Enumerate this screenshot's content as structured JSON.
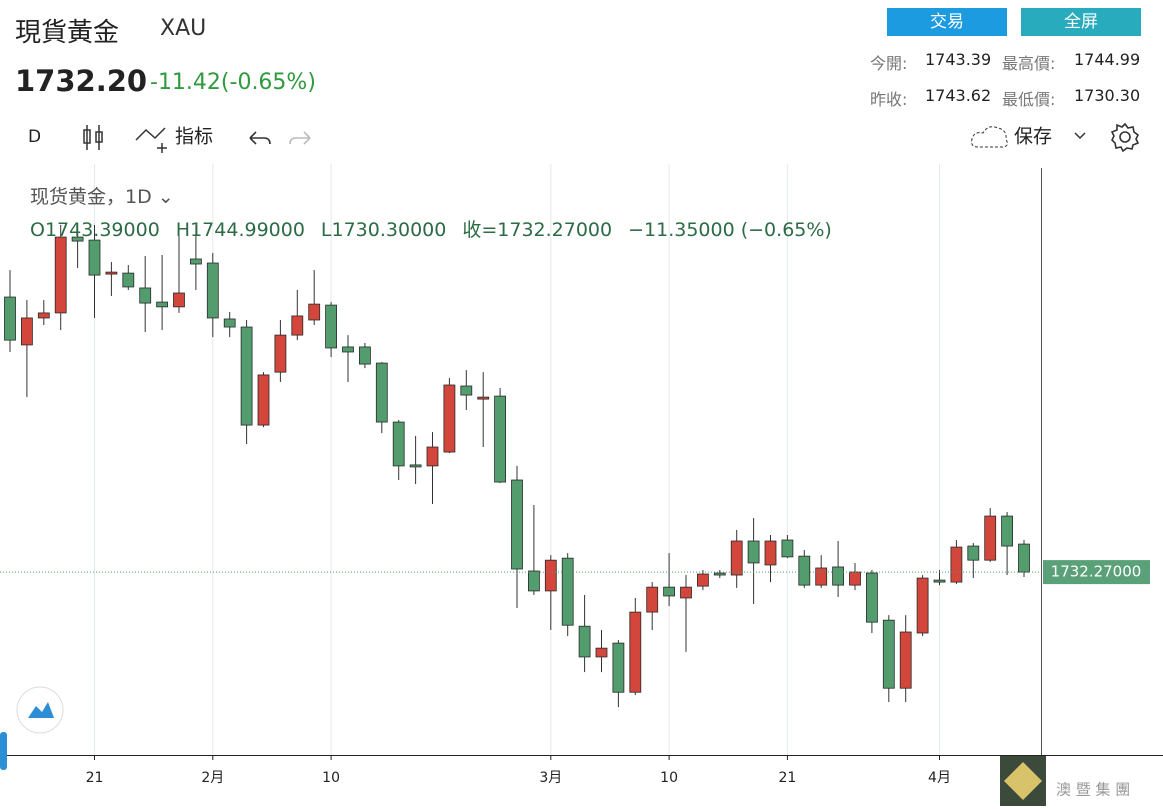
{
  "header": {
    "title": "現貨黃金",
    "symbol": "XAU",
    "price": "1732.20",
    "change": "-11.42(-0.65%)"
  },
  "buttons": [
    "交易",
    "全屏"
  ],
  "quote": [
    [
      "今開:",
      "1743.39",
      "最高價:",
      "1744.99"
    ],
    [
      "昨收:",
      "1743.62",
      "最低價:",
      "1730.30"
    ]
  ],
  "toolbar": {
    "interval": "D",
    "indicators": "指标",
    "save": "保存"
  },
  "watermark": "澳 暨 集 團",
  "chart_data": {
    "type": "candlestick",
    "legend_title": "现货黄金，1D",
    "ohlc_labels": [
      "O1743.39000",
      "H1744.99000",
      "L1730.30000",
      "收=1732.27000",
      "−11.35000 (−0.65%)"
    ],
    "last_price_label": "1732.27000",
    "categories": [
      null,
      null,
      null,
      null,
      null,
      "21",
      null,
      null,
      null,
      null,
      null,
      null,
      "2月",
      null,
      null,
      null,
      null,
      null,
      null,
      "10",
      null,
      null,
      null,
      null,
      null,
      null,
      null,
      null,
      null,
      null,
      null,
      null,
      "3月",
      null,
      null,
      null,
      null,
      null,
      null,
      "10",
      null,
      null,
      null,
      null,
      null,
      null,
      "21",
      null,
      null,
      null,
      null,
      null,
      null,
      null,
      null,
      "4月",
      null,
      null,
      null,
      null,
      null
    ],
    "open": [
      1841.4,
      1822.4,
      1833.1,
      1835.1,
      1865.2,
      1864.0,
      1850.5,
      1850.9,
      1845.0,
      1839.4,
      1837.5,
      1856.5,
      1854.9,
      1832.7,
      1829.5,
      1790.6,
      1811.6,
      1826.3,
      1832.3,
      1838.2,
      1821.6,
      1821.6,
      1815.2,
      1791.8,
      1774.8,
      1774.4,
      1779.9,
      1806.1,
      1800.9,
      1802.1,
      1768.8,
      1732.7,
      1724.8,
      1737.8,
      1710.8,
      1698.6,
      1704.1,
      1684.6,
      1716.4,
      1726.3,
      1722.0,
      1726.7,
      1731.9,
      1731.1,
      1744.6,
      1735.1,
      1745.0,
      1738.6,
      1727.1,
      1734.3,
      1727.1,
      1731.9,
      1713.2,
      1686.2,
      1708.1,
      1729.1,
      1728.3,
      1742.6,
      1737.0,
      1754.5,
      1743.39
    ],
    "high": [
      1852.1,
      1840.2,
      1840.2,
      1870.0,
      1870.0,
      1870.0,
      1855.3,
      1854.1,
      1857.7,
      1858.1,
      1870.0,
      1870.0,
      1858.9,
      1835.5,
      1832.3,
      1811.6,
      1832.3,
      1844.2,
      1852.1,
      1839.4,
      1826.3,
      1823.2,
      1815.6,
      1792.6,
      1786.3,
      1787.8,
      1809.3,
      1812.4,
      1811.6,
      1805.3,
      1774.4,
      1758.9,
      1739.0,
      1739.8,
      1723.2,
      1709.3,
      1705.3,
      1722.0,
      1728.3,
      1739.8,
      1731.1,
      1733.1,
      1733.1,
      1749.0,
      1753.7,
      1747.0,
      1747.0,
      1741.0,
      1739.0,
      1744.6,
      1735.9,
      1733.1,
      1715.2,
      1715.2,
      1731.1,
      1733.1,
      1745.0,
      1743.8,
      1757.7,
      1756.1,
      1744.99
    ],
    "low": [
      1819.6,
      1801.7,
      1830.3,
      1828.3,
      1852.9,
      1833.1,
      1841.8,
      1844.2,
      1827.5,
      1828.3,
      1835.1,
      1844.2,
      1825.5,
      1825.5,
      1783.1,
      1789.8,
      1807.7,
      1824.3,
      1830.3,
      1817.6,
      1807.7,
      1813.2,
      1787.4,
      1768.8,
      1767.2,
      1759.3,
      1779.5,
      1796.6,
      1781.9,
      1767.6,
      1718.0,
      1723.2,
      1709.3,
      1706.9,
      1692.6,
      1692.6,
      1678.7,
      1683.5,
      1709.3,
      1718.8,
      1700.6,
      1725.1,
      1729.9,
      1726.0,
      1719.6,
      1728.3,
      1737.8,
      1726.0,
      1726.0,
      1722.4,
      1725.1,
      1708.1,
      1680.7,
      1680.7,
      1706.9,
      1727.1,
      1727.5,
      1729.9,
      1736.3,
      1731.1,
      1730.3
    ],
    "close": [
      1824.3,
      1833.1,
      1835.1,
      1865.2,
      1863.6,
      1850.1,
      1851.3,
      1845.4,
      1839.0,
      1837.5,
      1843.0,
      1854.5,
      1833.1,
      1829.5,
      1790.6,
      1810.5,
      1826.3,
      1833.9,
      1838.6,
      1821.2,
      1819.6,
      1814.8,
      1791.8,
      1774.4,
      1774.0,
      1781.9,
      1806.5,
      1802.5,
      1801.7,
      1768.0,
      1733.5,
      1724.8,
      1737.0,
      1711.2,
      1698.6,
      1702.1,
      1684.6,
      1716.4,
      1726.3,
      1722.8,
      1726.3,
      1731.5,
      1731.1,
      1744.6,
      1735.9,
      1744.6,
      1738.3,
      1727.1,
      1733.9,
      1727.1,
      1732.3,
      1712.4,
      1686.2,
      1708.5,
      1729.9,
      1728.3,
      1742.2,
      1737.0,
      1754.5,
      1742.6,
      1732.27
    ],
    "up_color": "#d2463b",
    "down_color": "#529c6e",
    "ylim": [
      1659.7,
      1892.6
    ],
    "grid": true
  }
}
